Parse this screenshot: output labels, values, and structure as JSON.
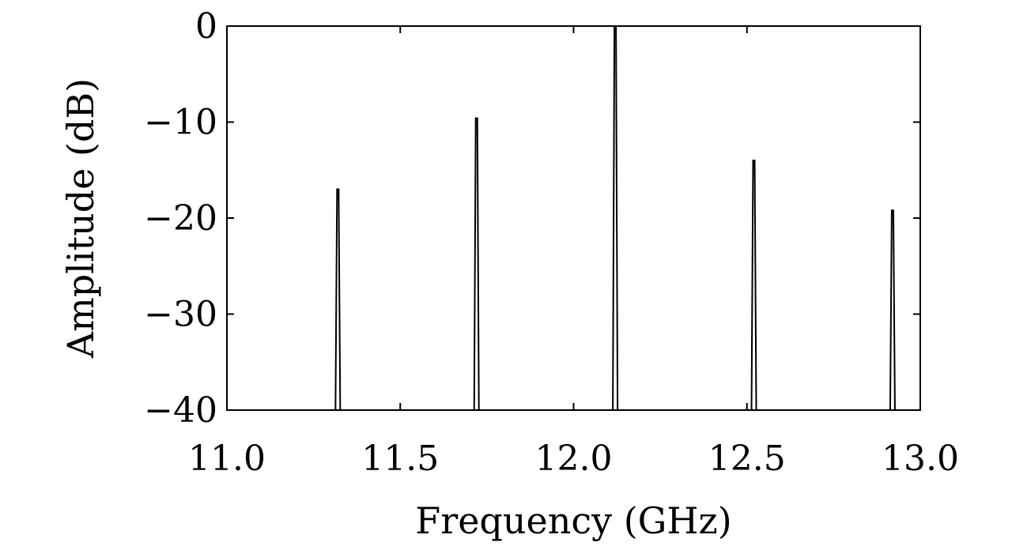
{
  "chart_data": {
    "type": "line",
    "title": "",
    "xlabel": "Frequency (GHz)",
    "ylabel": "Amplitude (dB)",
    "xlim": [
      11.0,
      13.0
    ],
    "ylim": [
      -40,
      0
    ],
    "xticks": [
      11.0,
      11.5,
      12.0,
      12.5,
      13.0
    ],
    "xtick_labels": [
      "11.0",
      "11.5",
      "12.0",
      "12.5",
      "13.0"
    ],
    "yticks": [
      0,
      -10,
      -20,
      -30,
      -40
    ],
    "ytick_labels": [
      "0",
      "−10",
      "−20",
      "−30",
      "−40"
    ],
    "grid": false,
    "legend": "none",
    "line_color": "#000000",
    "baseline_db": -40,
    "peaks": [
      {
        "frequency": 11.32,
        "amplitude": -17
      },
      {
        "frequency": 11.72,
        "amplitude": -9.6
      },
      {
        "frequency": 12.12,
        "amplitude": 0
      },
      {
        "frequency": 12.52,
        "amplitude": -14
      },
      {
        "frequency": 12.92,
        "amplitude": -19.2
      }
    ]
  }
}
